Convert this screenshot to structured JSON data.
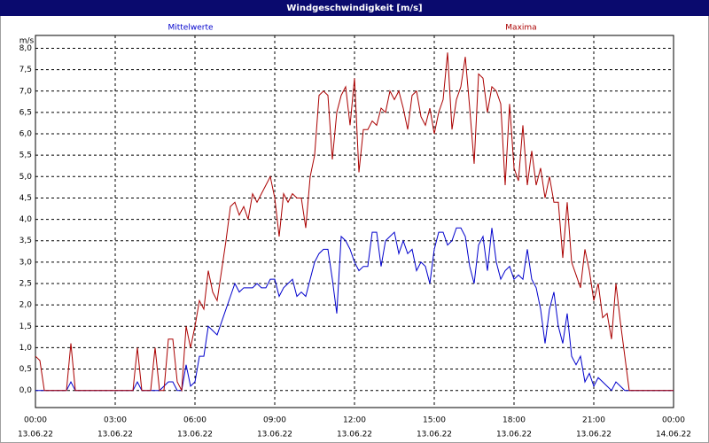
{
  "chart_data": {
    "type": "line",
    "title": "Windgeschwindigkeit [m/s]",
    "y_unit": "m/s",
    "x": [
      0,
      10,
      20,
      30,
      40,
      50,
      60,
      70,
      80,
      90,
      100,
      110,
      120,
      130,
      140,
      150,
      160,
      170,
      180,
      190,
      200,
      210,
      220,
      230,
      240,
      250,
      260,
      270,
      280,
      290,
      300,
      310,
      320,
      330,
      340,
      350,
      360,
      370,
      380,
      390,
      400,
      410,
      420,
      430,
      440,
      450,
      460,
      470,
      480,
      490,
      500,
      510,
      520,
      530,
      540,
      550,
      560,
      570,
      580,
      590,
      600,
      610,
      620,
      630,
      640,
      650,
      660,
      670,
      680,
      690,
      700,
      710,
      720,
      730,
      740,
      750,
      760,
      770,
      780,
      790,
      800,
      810,
      820,
      830,
      840,
      850,
      860,
      870,
      880,
      890,
      900,
      910,
      920,
      930,
      940,
      950,
      960,
      970,
      980,
      990,
      1000,
      1010,
      1020,
      1030,
      1040,
      1050,
      1060,
      1070,
      1080,
      1090,
      1100,
      1110,
      1120,
      1130,
      1140,
      1150,
      1160,
      1170,
      1180,
      1190,
      1200,
      1210,
      1220,
      1230,
      1240,
      1250,
      1260,
      1270,
      1280,
      1290,
      1300,
      1310,
      1320,
      1330,
      1340,
      1350,
      1360,
      1370,
      1380,
      1390,
      1400,
      1410,
      1420,
      1430,
      1440
    ],
    "series": [
      {
        "name": "Mittelwerte",
        "color": "#0000cc",
        "values": [
          0,
          0,
          0,
          0,
          0,
          0,
          0,
          0,
          0.2,
          0,
          0,
          0,
          0,
          0,
          0,
          0,
          0,
          0,
          0,
          0,
          0,
          0,
          0,
          0.2,
          0,
          0,
          0,
          0,
          0,
          0.1,
          0.2,
          0.2,
          0,
          0,
          0.6,
          0.1,
          0.2,
          0.8,
          0.8,
          1.5,
          1.4,
          1.3,
          1.6,
          1.9,
          2.2,
          2.5,
          2.3,
          2.4,
          2.4,
          2.4,
          2.5,
          2.4,
          2.4,
          2.6,
          2.6,
          2.2,
          2.4,
          2.5,
          2.6,
          2.2,
          2.3,
          2.2,
          2.6,
          3.0,
          3.2,
          3.3,
          3.3,
          2.6,
          1.8,
          3.6,
          3.5,
          3.3,
          3.0,
          2.8,
          2.9,
          2.9,
          3.7,
          3.7,
          2.9,
          3.5,
          3.6,
          3.7,
          3.2,
          3.5,
          3.2,
          3.3,
          2.8,
          3.0,
          2.9,
          2.5,
          3.3,
          3.7,
          3.7,
          3.4,
          3.5,
          3.8,
          3.8,
          3.6,
          2.9,
          2.5,
          3.4,
          3.6,
          2.8,
          3.8,
          3.0,
          2.6,
          2.8,
          2.9,
          2.6,
          2.7,
          2.6,
          3.3,
          2.6,
          2.4,
          1.9,
          1.1,
          1.9,
          2.3,
          1.5,
          1.1,
          1.8,
          0.8,
          0.6,
          0.8,
          0.2,
          0.4,
          0.1,
          0.3,
          0.2,
          0.1,
          0,
          0.2,
          0.1,
          0,
          0,
          0,
          0,
          0,
          0,
          0,
          0,
          0,
          0,
          0,
          0
        ]
      },
      {
        "name": "Maxima",
        "color": "#aa0000",
        "values": [
          0.8,
          0.7,
          0,
          0,
          0,
          0,
          0,
          0,
          1.1,
          0,
          0,
          0,
          0,
          0,
          0,
          0,
          0,
          0,
          0,
          0,
          0,
          0,
          0,
          1.0,
          0,
          0,
          0,
          1.0,
          0,
          0,
          1.2,
          1.2,
          0.2,
          0,
          1.5,
          1.0,
          1.5,
          2.1,
          1.9,
          2.8,
          2.3,
          2.1,
          2.8,
          3.5,
          4.3,
          4.4,
          4.1,
          4.3,
          4.0,
          4.6,
          4.4,
          4.6,
          4.8,
          5.0,
          4.5,
          3.6,
          4.6,
          4.4,
          4.6,
          4.5,
          4.5,
          3.8,
          5.0,
          5.5,
          6.9,
          7.0,
          6.9,
          5.4,
          6.5,
          6.9,
          7.1,
          6.2,
          7.3,
          5.1,
          6.1,
          6.1,
          6.3,
          6.2,
          6.6,
          6.5,
          7.0,
          6.8,
          7.0,
          6.6,
          6.1,
          6.9,
          7.0,
          6.4,
          6.2,
          6.6,
          6.0,
          6.5,
          6.8,
          7.9,
          6.1,
          6.8,
          7.1,
          7.8,
          6.6,
          5.3,
          7.4,
          7.3,
          6.5,
          7.1,
          7.0,
          6.7,
          4.8,
          6.7,
          5.2,
          4.9,
          6.2,
          4.8,
          5.6,
          4.8,
          5.2,
          4.5,
          5.0,
          4.4,
          4.4,
          3.1,
          4.4,
          3.0,
          2.7,
          2.4,
          3.3,
          2.8,
          2.1,
          2.5,
          1.7,
          1.8,
          1.2,
          2.5,
          1.6,
          0.8,
          0,
          0,
          0,
          0,
          0,
          0,
          0,
          0,
          0,
          0,
          0
        ]
      }
    ],
    "xlim": [
      0,
      1440
    ],
    "xticks": [
      {
        "value": 0,
        "label": "00:00"
      },
      {
        "value": 180,
        "label": "03:00"
      },
      {
        "value": 360,
        "label": "06:00"
      },
      {
        "value": 540,
        "label": "09:00"
      },
      {
        "value": 720,
        "label": "12:00"
      },
      {
        "value": 900,
        "label": "15:00"
      },
      {
        "value": 1080,
        "label": "18:00"
      },
      {
        "value": 1260,
        "label": "21:00"
      },
      {
        "value": 1440,
        "label": "00:00"
      }
    ],
    "xtick_dates": [
      "13.06.22",
      "13.06.22",
      "13.06.22",
      "13.06.22",
      "13.06.22",
      "13.06.22",
      "13.06.22",
      "13.06.22",
      "14.06.22"
    ],
    "ylim": [
      -0.4,
      8.3
    ],
    "yticks": [
      {
        "value": 0,
        "label": "0,0"
      },
      {
        "value": 0.5,
        "label": "0,5"
      },
      {
        "value": 1,
        "label": "1,0"
      },
      {
        "value": 1.5,
        "label": "1,5"
      },
      {
        "value": 2,
        "label": "2,0"
      },
      {
        "value": 2.5,
        "label": "2,5"
      },
      {
        "value": 3,
        "label": "3,0"
      },
      {
        "value": 3.5,
        "label": "3,5"
      },
      {
        "value": 4,
        "label": "4,0"
      },
      {
        "value": 4.5,
        "label": "4,5"
      },
      {
        "value": 5,
        "label": "5,0"
      },
      {
        "value": 5.5,
        "label": "5,5"
      },
      {
        "value": 6,
        "label": "6,0"
      },
      {
        "value": 6.5,
        "label": "6,5"
      },
      {
        "value": 7,
        "label": "7,0"
      },
      {
        "value": 7.5,
        "label": "7,5"
      },
      {
        "value": 8,
        "label": "8,0"
      }
    ],
    "grid": true
  }
}
